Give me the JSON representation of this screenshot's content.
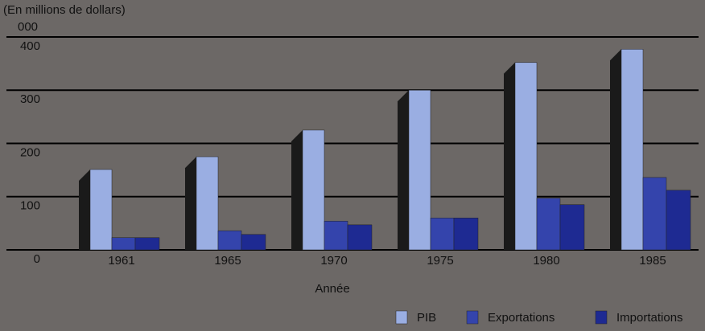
{
  "chart_data": {
    "type": "bar",
    "y_label": "(En millions de dollars)",
    "annotation": "000",
    "x_label": "Année",
    "categories": [
      "1961",
      "1965",
      "1970",
      "1975",
      "1980",
      "1985"
    ],
    "series": [
      {
        "name": "PIB",
        "color": "#9aaee2",
        "values": [
          151,
          175,
          225,
          300,
          352,
          377
        ]
      },
      {
        "name": "Exportations",
        "color": "#3444ac",
        "values": [
          23,
          36,
          54,
          60,
          97,
          136
        ]
      },
      {
        "name": "Importations",
        "color": "#1e2a92",
        "values": [
          23,
          29,
          47,
          60,
          85,
          112
        ]
      }
    ],
    "ylim": [
      0,
      400
    ],
    "yticks": [
      0,
      100,
      200,
      300,
      400
    ],
    "grid": true,
    "legend": "bottom-right"
  }
}
